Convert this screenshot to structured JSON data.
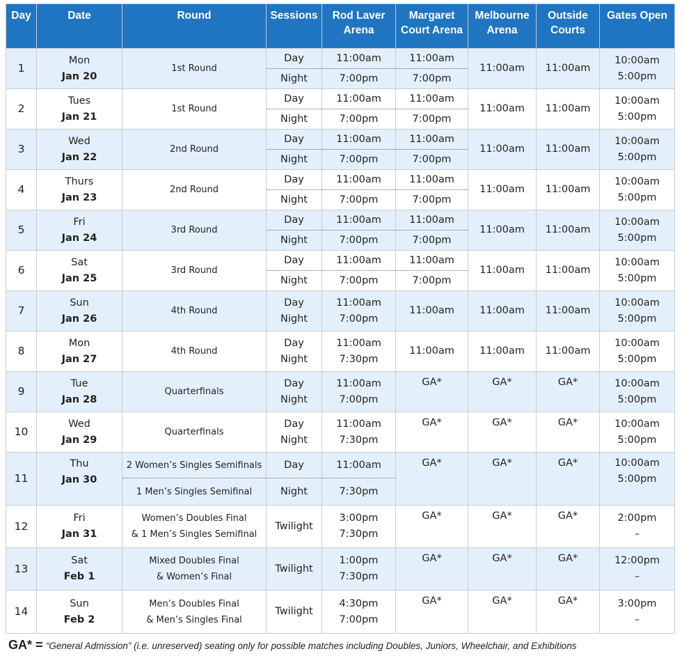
{
  "headers": {
    "day": "Day",
    "date": "Date",
    "round": "Round",
    "sessions": "Sessions",
    "rla": "Rod Laver Arena",
    "mca": "Margaret Court Arena",
    "ma": "Melbourne Arena",
    "oc": "Outside Courts",
    "gates": "Gates Open"
  },
  "rows": [
    {
      "day": "1",
      "dow": "Mon",
      "date": "Jan 20",
      "round": "1st Round",
      "s1": "Day",
      "s2": "Night",
      "r1": "11:00am",
      "r2": "7:00pm",
      "m1": "11:00am",
      "m2": "7:00pm",
      "mel": "11:00am",
      "out": "11:00am",
      "g1": "10:00am",
      "g2": "5:00pm"
    },
    {
      "day": "2",
      "dow": "Tues",
      "date": "Jan 21",
      "round": "1st Round",
      "s1": "Day",
      "s2": "Night",
      "r1": "11:00am",
      "r2": "7:00pm",
      "m1": "11:00am",
      "m2": "7:00pm",
      "mel": "11:00am",
      "out": "11:00am",
      "g1": "10:00am",
      "g2": "5:00pm"
    },
    {
      "day": "3",
      "dow": "Wed",
      "date": "Jan 22",
      "round": "2nd Round",
      "s1": "Day",
      "s2": "Night",
      "r1": "11:00am",
      "r2": "7:00pm",
      "m1": "11:00am",
      "m2": "7:00pm",
      "mel": "11:00am",
      "out": "11:00am",
      "g1": "10:00am",
      "g2": "5:00pm"
    },
    {
      "day": "4",
      "dow": "Thurs",
      "date": "Jan 23",
      "round": "2nd Round",
      "s1": "Day",
      "s2": "Night",
      "r1": "11:00am",
      "r2": "7:00pm",
      "m1": "11:00am",
      "m2": "7:00pm",
      "mel": "11:00am",
      "out": "11:00am",
      "g1": "10:00am",
      "g2": "5:00pm"
    },
    {
      "day": "5",
      "dow": "Fri",
      "date": "Jan 24",
      "round": "3rd Round",
      "s1": "Day",
      "s2": "Night",
      "r1": "11:00am",
      "r2": "7:00pm",
      "m1": "11:00am",
      "m2": "7:00pm",
      "mel": "11:00am",
      "out": "11:00am",
      "g1": "10:00am",
      "g2": "5:00pm"
    },
    {
      "day": "6",
      "dow": "Sat",
      "date": "Jan 25",
      "round": "3rd Round",
      "s1": "Day",
      "s2": "Night",
      "r1": "11:00am",
      "r2": "7:00pm",
      "m1": "11:00am",
      "m2": "7:00pm",
      "mel": "11:00am",
      "out": "11:00am",
      "g1": "10:00am",
      "g2": "5:00pm"
    },
    {
      "day": "7",
      "dow": "Sun",
      "date": "Jan 26",
      "round": "4th Round",
      "s1": "Day",
      "s2": "Night",
      "r1": "11:00am",
      "r2": "7:00pm",
      "mca": "11:00am",
      "mel": "11:00am",
      "out": "11:00am",
      "g1": "10:00am",
      "g2": "5:00pm"
    },
    {
      "day": "8",
      "dow": "Mon",
      "date": "Jan 27",
      "round": "4th Round",
      "s1": "Day",
      "s2": "Night",
      "r1": "11:00am",
      "r2": "7:30pm",
      "mca": "11:00am",
      "mel": "11:00am",
      "out": "11:00am",
      "g1": "10:00am",
      "g2": "5:00pm"
    },
    {
      "day": "9",
      "dow": "Tue",
      "date": "Jan 28",
      "round": "Quarterfinals",
      "s1": "Day",
      "s2": "Night",
      "r1": "11:00am",
      "r2": "7:00pm",
      "mca": "GA*",
      "mel": "GA*",
      "out": "GA*",
      "g1": "10:00am",
      "g2": "5:00pm"
    },
    {
      "day": "10",
      "dow": "Wed",
      "date": "Jan 29",
      "round": "Quarterfinals",
      "s1": "Day",
      "s2": "Night",
      "r1": "11:00am",
      "r2": "7:30pm",
      "mca": "GA*",
      "mel": "GA*",
      "out": "GA*",
      "g1": "10:00am",
      "g2": "5:00pm"
    },
    {
      "day": "11",
      "dow": "Thu",
      "date": "Jan 30",
      "round1": "2 Women’s Singles Semifinals",
      "round2": "1 Men’s Singles Semifinal",
      "s1": "Day",
      "s2": "Night",
      "r1": "11:00am",
      "r2": "7:30pm",
      "mca": "GA*",
      "mel": "GA*",
      "out": "GA*",
      "g1": "10:00am",
      "g2": "5:00pm"
    },
    {
      "day": "12",
      "dow": "Fri",
      "date": "Jan 31",
      "round1": "Women’s Doubles Final",
      "round2": "& 1 Men’s Singles Semifinal",
      "session": "Twilight",
      "r1": "3:00pm",
      "r2": "7:30pm",
      "mca": "GA*",
      "mel": "GA*",
      "out": "GA*",
      "g1": "2:00pm",
      "g2": "–"
    },
    {
      "day": "13",
      "dow": "Sat",
      "date": "Feb 1",
      "round1": "Mixed Doubles Final",
      "round2": "& Women’s Final",
      "session": "Twilight",
      "r1": "1:00pm",
      "r2": "7:30pm",
      "mca": "GA*",
      "mel": "GA*",
      "out": "GA*",
      "g1": "12:00pm",
      "g2": "–"
    },
    {
      "day": "14",
      "dow": "Sun",
      "date": "Feb 2",
      "round1": "Men’s Doubles Final",
      "round2": "& Men’s Singles Final",
      "session": "Twilight",
      "r1": "4:30pm",
      "r2": "7:00pm",
      "mca": "GA*",
      "mel": "GA*",
      "out": "GA*",
      "g1": "3:00pm",
      "g2": "–"
    }
  ],
  "footer": {
    "key": "GA* =",
    "desc": "“General Admission” (i.e. unreserved) seating only for possible matches including Doubles, Juniors, Wheelchair, and Exhibitions"
  }
}
